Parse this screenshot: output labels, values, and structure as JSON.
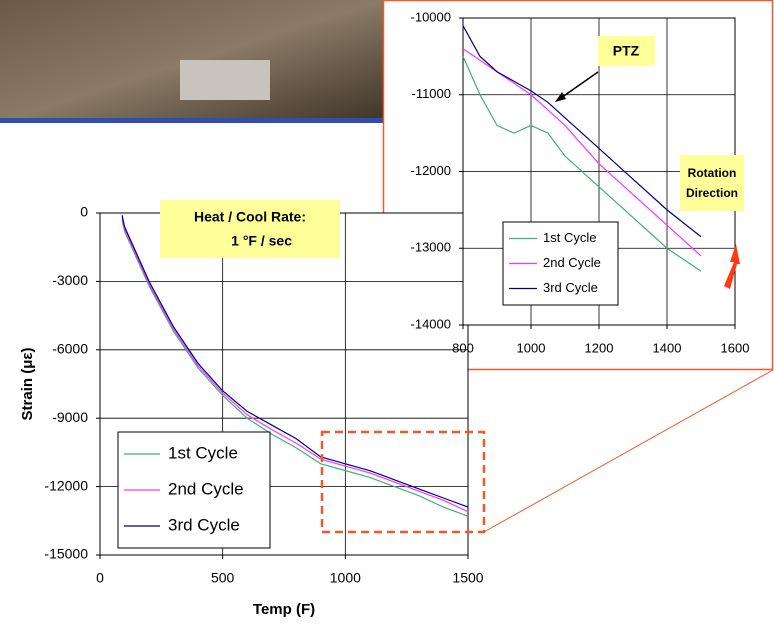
{
  "chart_data": [
    {
      "type": "line",
      "xlabel": "Temp (F)",
      "ylabel": "Strain (με)",
      "xlim": [
        0,
        1500
      ],
      "xticks": [
        0,
        500,
        1000,
        1500
      ],
      "ylim": [
        -15000,
        0
      ],
      "yticks": [
        0,
        -3000,
        -6000,
        -9000,
        -12000,
        -15000
      ],
      "grid": true,
      "legend": "lower left",
      "annotations": [
        "Heat / Cool Rate:",
        "1 °F / sec"
      ],
      "series": [
        {
          "name": "1st Cycle",
          "color": "#3cb371",
          "x": [
            90,
            100,
            150,
            200,
            300,
            400,
            500,
            600,
            700,
            800,
            900,
            1000,
            1100,
            1200,
            1300,
            1400,
            1500
          ],
          "values": [
            -300,
            -800,
            -2000,
            -3200,
            -5200,
            -6800,
            -8000,
            -9000,
            -9700,
            -10300,
            -11000,
            -11300,
            -11600,
            -12000,
            -12400,
            -12900,
            -13300
          ]
        },
        {
          "name": "2nd Cycle",
          "color": "#ff33ff",
          "x": [
            90,
            100,
            150,
            200,
            300,
            400,
            500,
            600,
            700,
            800,
            900,
            1000,
            1100,
            1200,
            1300,
            1400,
            1500
          ],
          "values": [
            -200,
            -700,
            -1900,
            -3100,
            -5100,
            -6700,
            -7900,
            -8850,
            -9500,
            -10100,
            -10800,
            -11100,
            -11400,
            -11800,
            -12200,
            -12600,
            -13100
          ]
        },
        {
          "name": "3rd Cycle",
          "color": "#000080",
          "x": [
            90,
            100,
            150,
            200,
            300,
            400,
            500,
            600,
            700,
            800,
            900,
            1000,
            1100,
            1200,
            1300,
            1400,
            1500
          ],
          "values": [
            -100,
            -600,
            -1800,
            -3000,
            -5000,
            -6600,
            -7800,
            -8700,
            -9300,
            -9900,
            -10700,
            -11000,
            -11300,
            -11700,
            -12100,
            -12500,
            -12900
          ]
        }
      ]
    },
    {
      "type": "line",
      "xlim": [
        800,
        1600
      ],
      "xticks": [
        800,
        1000,
        1200,
        1400,
        1600
      ],
      "ylim": [
        -14000,
        -10000
      ],
      "yticks": [
        -10000,
        -11000,
        -12000,
        -13000,
        -14000
      ],
      "grid": true,
      "legend": "lower left",
      "annotations": [
        "PTZ",
        "Rotation",
        "Direction"
      ],
      "series": [
        {
          "name": "1st Cycle",
          "color": "#3cb371",
          "x": [
            800,
            850,
            900,
            950,
            1000,
            1050,
            1100,
            1200,
            1300,
            1400,
            1500
          ],
          "values": [
            -10500,
            -11000,
            -11400,
            -11500,
            -11400,
            -11500,
            -11800,
            -12200,
            -12600,
            -13000,
            -13300
          ]
        },
        {
          "name": "2nd Cycle",
          "color": "#ff33ff",
          "x": [
            800,
            900,
            1000,
            1050,
            1100,
            1200,
            1300,
            1400,
            1500
          ],
          "values": [
            -10400,
            -10700,
            -11000,
            -11200,
            -11400,
            -11900,
            -12300,
            -12700,
            -13100
          ]
        },
        {
          "name": "3rd Cycle",
          "color": "#000080",
          "x": [
            800,
            850,
            900,
            1000,
            1050,
            1100,
            1200,
            1300,
            1400,
            1500
          ],
          "values": [
            -10100,
            -10500,
            -10700,
            -10950,
            -11100,
            -11300,
            -11700,
            -12100,
            -12500,
            -12850
          ]
        }
      ]
    }
  ]
}
